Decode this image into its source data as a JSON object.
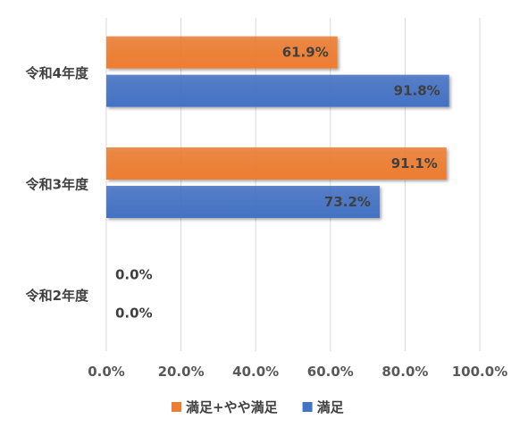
{
  "chart_data": {
    "type": "bar",
    "orientation": "horizontal",
    "categories": [
      "令和4年度",
      "令和3年度",
      "令和2年度"
    ],
    "series": [
      {
        "name": "満足+やや満足",
        "color": "#ED7D31",
        "values": [
          61.9,
          91.1,
          0.0
        ]
      },
      {
        "name": "満足",
        "color": "#4472C4",
        "values": [
          91.8,
          73.2,
          0.0
        ]
      }
    ],
    "data_labels": [
      [
        "61.9%",
        "91.1%",
        "0.0%"
      ],
      [
        "91.8%",
        "73.2%",
        "0.0%"
      ]
    ],
    "x_ticks": [
      "0.0%",
      "20.0%",
      "40.0%",
      "60.0%",
      "80.0%",
      "100.0%"
    ],
    "xlim": [
      0,
      100
    ],
    "grid": true,
    "legend_position": "bottom",
    "title": "",
    "xlabel": "",
    "ylabel": ""
  }
}
